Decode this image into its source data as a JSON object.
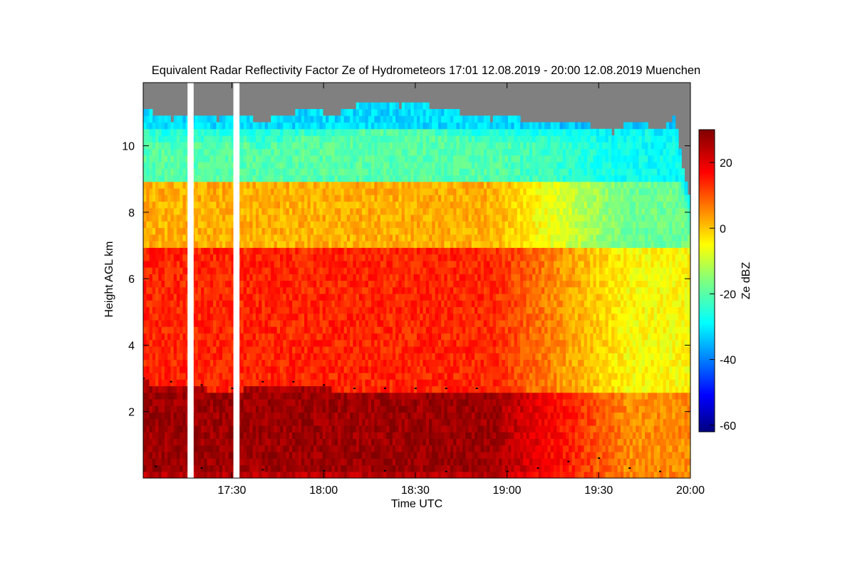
{
  "chart_data": {
    "type": "heatmap",
    "title": "Equivalent Radar Reflectivity Factor Ze of Hydrometeors   17:01 12.08.2019 - 20:00 12.08.2019 Muenchen",
    "xlabel": "Time UTC",
    "ylabel": "Height AGL km",
    "colorbar_label": "Ze dBZ",
    "x_unit": "minutes after 17:00 UTC",
    "xlim": [
      1,
      180
    ],
    "ylim": [
      0,
      11.9
    ],
    "x_ticks": [
      {
        "value": 30,
        "label": "17:30"
      },
      {
        "value": 60,
        "label": "18:00"
      },
      {
        "value": 90,
        "label": "18:30"
      },
      {
        "value": 120,
        "label": "19:00"
      },
      {
        "value": 150,
        "label": "19:30"
      },
      {
        "value": 180,
        "label": "20:00"
      }
    ],
    "y_ticks": [
      {
        "value": 2,
        "label": "2"
      },
      {
        "value": 4,
        "label": "4"
      },
      {
        "value": 6,
        "label": "6"
      },
      {
        "value": 8,
        "label": "8"
      },
      {
        "value": 10,
        "label": "10"
      }
    ],
    "colorbar": {
      "range": [
        -62,
        30
      ],
      "ticks": [
        {
          "value": 20,
          "label": "20"
        },
        {
          "value": 0,
          "label": "0"
        },
        {
          "value": -20,
          "label": "-20"
        },
        {
          "value": -40,
          "label": "-40"
        },
        {
          "value": -60,
          "label": "-60"
        }
      ]
    },
    "data_gaps_minutes": [
      [
        15.5,
        17.5
      ],
      [
        30.5,
        32.5
      ]
    ],
    "no_signal_color": "#808080",
    "echo_top_km": [
      [
        1,
        11.2
      ],
      [
        5,
        10.9
      ],
      [
        10,
        10.8
      ],
      [
        15,
        10.9
      ],
      [
        20,
        10.9
      ],
      [
        25,
        10.8
      ],
      [
        30,
        10.9
      ],
      [
        35,
        10.9
      ],
      [
        40,
        10.7
      ],
      [
        45,
        10.9
      ],
      [
        50,
        11.0
      ],
      [
        55,
        11.1
      ],
      [
        60,
        11.0
      ],
      [
        65,
        11.0
      ],
      [
        70,
        11.2
      ],
      [
        75,
        11.3
      ],
      [
        80,
        11.3
      ],
      [
        85,
        11.2
      ],
      [
        90,
        11.3
      ],
      [
        95,
        11.2
      ],
      [
        100,
        11.1
      ],
      [
        105,
        11.0
      ],
      [
        110,
        10.9
      ],
      [
        115,
        10.8
      ],
      [
        120,
        10.9
      ],
      [
        125,
        10.8
      ],
      [
        130,
        10.8
      ],
      [
        135,
        10.8
      ],
      [
        140,
        10.7
      ],
      [
        145,
        10.7
      ],
      [
        150,
        10.5
      ],
      [
        155,
        10.4
      ],
      [
        160,
        10.8
      ],
      [
        165,
        10.7
      ],
      [
        170,
        10.4
      ],
      [
        175,
        10.9
      ],
      [
        178,
        9.0
      ],
      [
        180,
        8.5
      ]
    ],
    "melting_layer_km": [
      [
        1,
        2.9
      ],
      [
        10,
        2.8
      ],
      [
        20,
        2.7
      ],
      [
        30,
        2.6
      ],
      [
        40,
        2.8
      ],
      [
        50,
        2.8
      ],
      [
        60,
        2.7
      ],
      [
        70,
        2.6
      ],
      [
        80,
        2.6
      ],
      [
        90,
        2.6
      ],
      [
        100,
        2.6
      ],
      [
        110,
        2.6
      ],
      [
        120,
        2.55
      ],
      [
        130,
        2.55
      ],
      [
        140,
        2.55
      ],
      [
        150,
        2.55
      ],
      [
        160,
        2.55
      ],
      [
        170,
        2.5
      ],
      [
        180,
        2.5
      ]
    ],
    "bands_dbz": [
      {
        "from_km": 0.2,
        "to_km": 2.6,
        "dbz_before_19h": 27,
        "dbz_after_1940": 5
      },
      {
        "from_km": 2.6,
        "to_km": 7.0,
        "dbz_before_19h": 14,
        "dbz_after_1940": -5
      },
      {
        "from_km": 7.0,
        "to_km": 9.0,
        "dbz_before_19h": 2,
        "dbz_after_1940": -18
      },
      {
        "from_km": 9.0,
        "to_km": 10.5,
        "dbz_before_19h": -20,
        "dbz_after_1940": -28
      },
      {
        "from_km": 10.5,
        "to_km": 11.2,
        "dbz_before_19h": -32,
        "dbz_after_1940": -35
      }
    ],
    "cloud_base_km": [
      [
        5,
        0.35
      ],
      [
        20,
        0.3
      ],
      [
        40,
        0.25
      ],
      [
        60,
        0.22
      ],
      [
        80,
        0.22
      ],
      [
        100,
        0.2
      ],
      [
        120,
        0.2
      ],
      [
        130,
        0.3
      ],
      [
        140,
        0.5
      ],
      [
        150,
        0.6
      ],
      [
        160,
        0.3
      ],
      [
        170,
        0.2
      ]
    ]
  }
}
